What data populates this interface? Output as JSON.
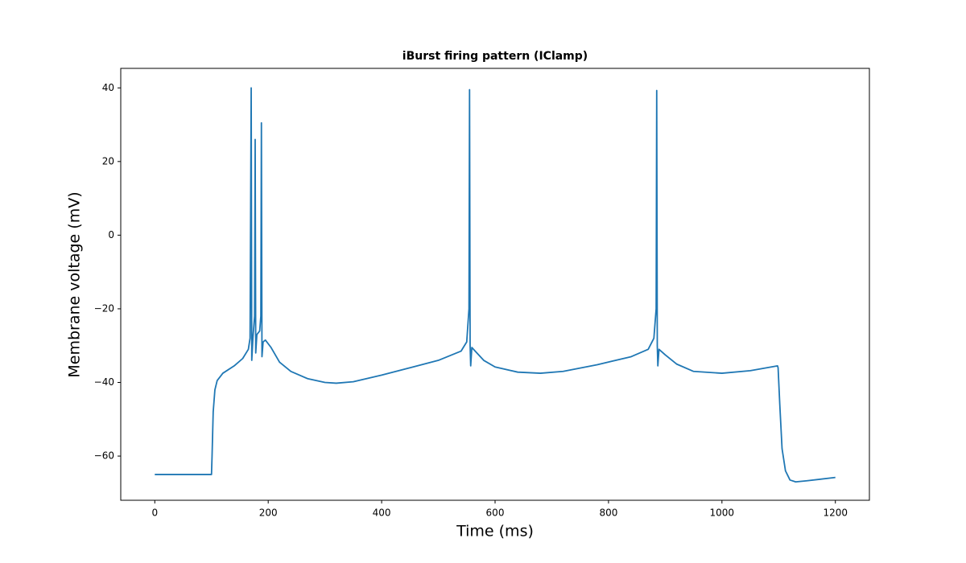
{
  "chart_data": {
    "type": "line",
    "title": "iBurst firing pattern (IClamp)",
    "x_label": "Time (ms)",
    "y_label": "Membrane voltage (mV)",
    "x": [
      0,
      100,
      101,
      103,
      106,
      110,
      120,
      140,
      155,
      165,
      168,
      170,
      171,
      173,
      176,
      177,
      178,
      180,
      185,
      187,
      188,
      189,
      191,
      195,
      205,
      220,
      240,
      270,
      300,
      320,
      350,
      400,
      450,
      500,
      540,
      550,
      554,
      555,
      556,
      557,
      559,
      565,
      580,
      600,
      640,
      680,
      720,
      780,
      840,
      870,
      880,
      884,
      885,
      886,
      887,
      889,
      900,
      920,
      950,
      1000,
      1050,
      1098,
      1099,
      1102,
      1106,
      1112,
      1120,
      1130,
      1150,
      1200
    ],
    "series": [
      {
        "color": "#1f77b4",
        "values": [
          -65,
          -65,
          -60,
          -48,
          -42,
          -39.5,
          -37.5,
          -35.5,
          -33.5,
          -31,
          -28,
          40,
          -34,
          -28,
          -22,
          26,
          -32,
          -27,
          -26,
          -22,
          30.5,
          -33,
          -29,
          -28.5,
          -30.5,
          -34.5,
          -37,
          -39,
          -40,
          -40.2,
          -39.8,
          -38,
          -36,
          -34,
          -31.5,
          -29,
          -20,
          39.5,
          -30,
          -35.5,
          -30.5,
          -31.5,
          -34,
          -35.8,
          -37.2,
          -37.5,
          -37,
          -35.2,
          -33,
          -31,
          -28,
          -20,
          39.3,
          -30,
          -35.5,
          -31,
          -32.5,
          -35,
          -37,
          -37.5,
          -36.8,
          -35.5,
          -36,
          -46,
          -58,
          -64,
          -66.5,
          -67,
          -66.7,
          -65.8
        ]
      }
    ],
    "xlim": [
      -60,
      1260
    ],
    "ylim": [
      -72.0,
      45.3
    ],
    "xticks": [
      0,
      200,
      400,
      600,
      800,
      1000,
      1200
    ],
    "yticks": [
      {
        "value": -60,
        "label": "−60"
      },
      {
        "value": -40,
        "label": "−40"
      },
      {
        "value": -20,
        "label": "−20"
      },
      0,
      20,
      40
    ]
  }
}
